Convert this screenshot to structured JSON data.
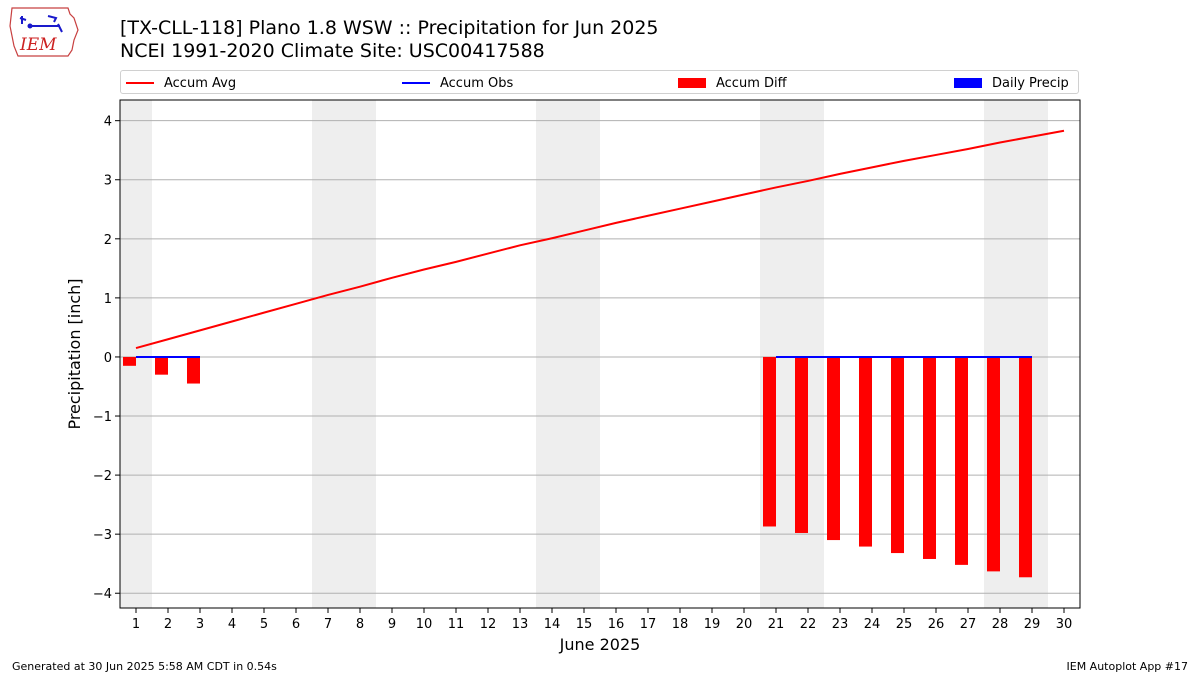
{
  "title_line1": "[TX-CLL-118] Plano 1.8 WSW :: Precipitation for Jun 2025",
  "title_line2": "NCEI 1991-2020 Climate Site: USC00417588",
  "logo_text": "IEM",
  "footer_left": "Generated at 30 Jun 2025 5:58 AM CDT in 0.54s",
  "footer_right": "IEM Autoplot App #17",
  "colors": {
    "accum_avg": "#ff0000",
    "accum_obs": "#0000ff",
    "accum_diff": "#ff0000",
    "daily_precip": "#0000ff",
    "weekend_shade": "#eeeeee",
    "grid": "#b0b0b0"
  },
  "legend": [
    {
      "label": "Accum Avg",
      "kind": "line",
      "color": "#ff0000"
    },
    {
      "label": "Accum Obs",
      "kind": "line",
      "color": "#0000ff"
    },
    {
      "label": "Accum Diff",
      "kind": "bar",
      "color": "#ff0000"
    },
    {
      "label": "Daily Precip",
      "kind": "bar",
      "color": "#0000ff"
    }
  ],
  "chart_data": {
    "type": "line",
    "xlabel": "June 2025",
    "ylabel": "Precipitation [inch]",
    "xlim": [
      0.5,
      30.5
    ],
    "ylim": [
      -4.25,
      4.35
    ],
    "x_ticks": [
      1,
      2,
      3,
      4,
      5,
      6,
      7,
      8,
      9,
      10,
      11,
      12,
      13,
      14,
      15,
      16,
      17,
      18,
      19,
      20,
      21,
      22,
      23,
      24,
      25,
      26,
      27,
      28,
      29,
      30
    ],
    "y_ticks": [
      -4,
      -3,
      -2,
      -1,
      0,
      1,
      2,
      3,
      4
    ],
    "y_tick_labels": [
      "−4",
      "−3",
      "−2",
      "−1",
      "0",
      "1",
      "2",
      "3",
      "4"
    ],
    "grid": "horizontal",
    "legend_position": "top",
    "weekend_ranges": [
      [
        0.5,
        1.5
      ],
      [
        6.5,
        8.5
      ],
      [
        13.5,
        15.5
      ],
      [
        20.5,
        22.5
      ],
      [
        27.5,
        29.5
      ]
    ],
    "accum_avg": {
      "x": [
        1,
        2,
        3,
        4,
        5,
        6,
        7,
        8,
        9,
        10,
        11,
        12,
        13,
        14,
        15,
        16,
        17,
        18,
        19,
        20,
        21,
        22,
        23,
        24,
        25,
        26,
        27,
        28,
        29,
        30
      ],
      "y": [
        0.15,
        0.3,
        0.45,
        0.6,
        0.75,
        0.9,
        1.05,
        1.19,
        1.34,
        1.48,
        1.61,
        1.75,
        1.89,
        2.01,
        2.14,
        2.27,
        2.39,
        2.51,
        2.63,
        2.75,
        2.87,
        2.98,
        3.1,
        3.21,
        3.32,
        3.42,
        3.52,
        3.63,
        3.73,
        3.83
      ]
    },
    "accum_obs": {
      "segments": [
        {
          "x": [
            1,
            3
          ],
          "y": [
            0,
            0
          ]
        },
        {
          "x": [
            21,
            29
          ],
          "y": [
            0,
            0
          ]
        }
      ]
    },
    "accum_diff": {
      "x": [
        1,
        2,
        3,
        21,
        22,
        23,
        24,
        25,
        26,
        27,
        28,
        29
      ],
      "y": [
        -0.15,
        -0.3,
        -0.45,
        -2.87,
        -2.98,
        -3.1,
        -3.21,
        -3.32,
        -3.42,
        -3.52,
        -3.63,
        -3.73
      ]
    },
    "daily_precip": {
      "x": [
        1,
        2,
        3,
        21,
        22,
        23,
        24,
        25,
        26,
        27,
        28,
        29
      ],
      "y": [
        0,
        0,
        0,
        0,
        0,
        0,
        0,
        0,
        0,
        0,
        0,
        0
      ]
    }
  }
}
